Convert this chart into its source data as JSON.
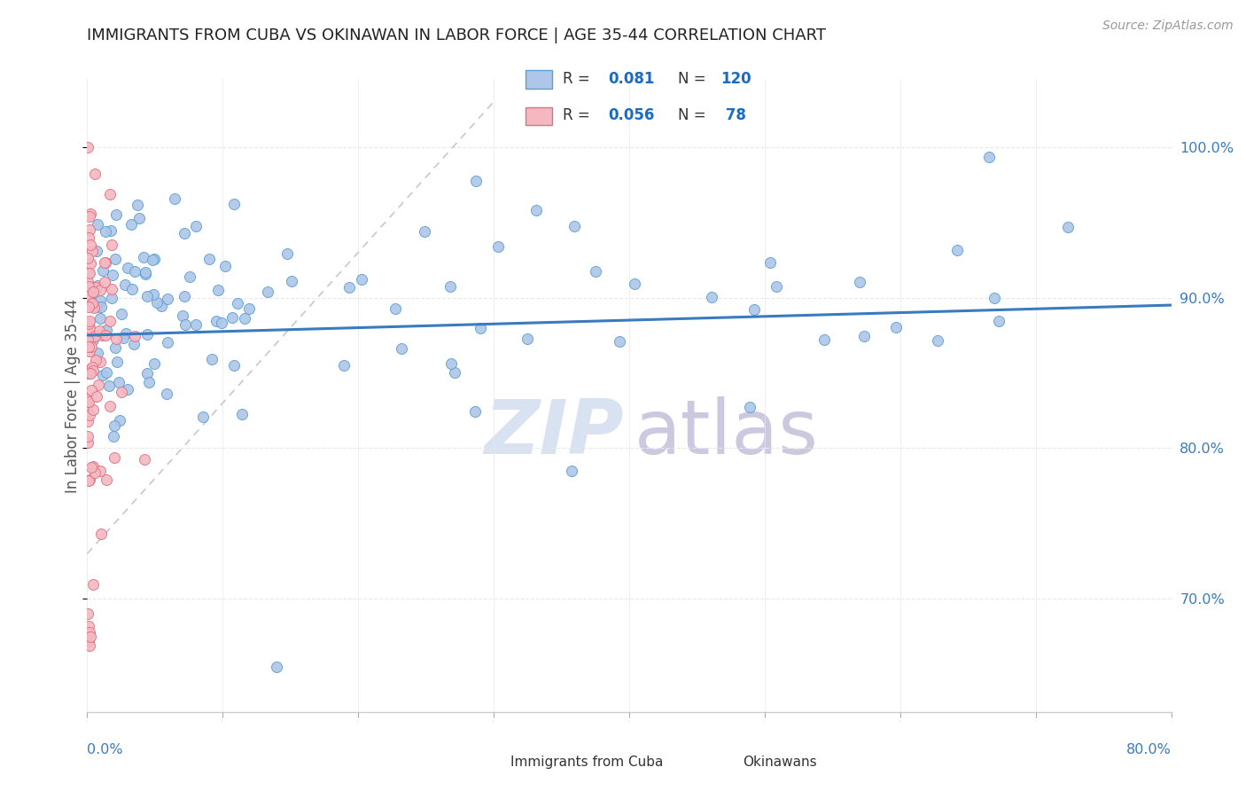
{
  "title": "IMMIGRANTS FROM CUBA VS OKINAWAN IN LABOR FORCE | AGE 35-44 CORRELATION CHART",
  "source": "Source: ZipAtlas.com",
  "ylabel": "In Labor Force | Age 35-44",
  "xlim": [
    0.0,
    0.8
  ],
  "ylim": [
    0.625,
    1.045
  ],
  "blue_color": "#aec6e8",
  "pink_color": "#f4b8c1",
  "blue_edge": "#5a9fd4",
  "pink_edge": "#e07080",
  "trend_line_color": "#3a7abf",
  "ref_line_color": "#c8c8c8",
  "watermark_zip_color": "#d8e2f0",
  "watermark_atlas_color": "#ccc8e0",
  "legend_value_color": "#1a6bc4",
  "background_color": "#ffffff",
  "grid_color": "#e8e8e8",
  "title_color": "#222222",
  "axis_label_color": "#555555",
  "tick_color": "#3a7abf",
  "right_yticks": [
    0.7,
    0.8,
    0.9,
    1.0
  ],
  "right_yticklabels": [
    "70.0%",
    "80.0%",
    "90.0%",
    "100.0%"
  ]
}
